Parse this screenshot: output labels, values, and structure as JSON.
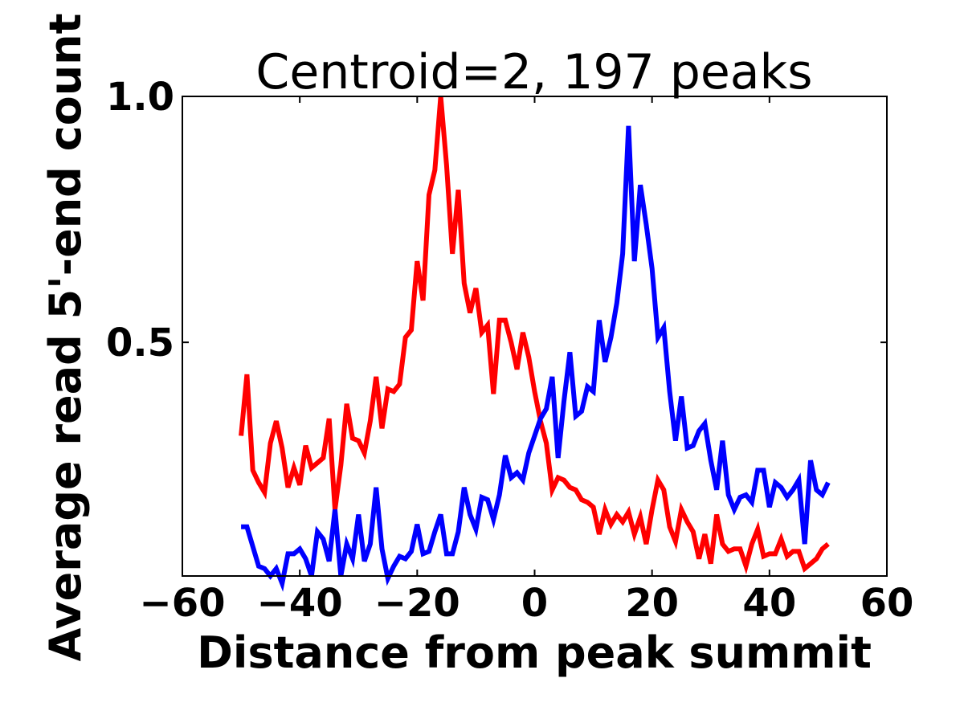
{
  "chart_data": {
    "type": "line",
    "title": "Centroid=2, 197 peaks",
    "xlabel": "Distance from peak summit",
    "ylabel": "Average read 5'-end count",
    "xlim": [
      -60,
      60
    ],
    "ylim": [
      0.025,
      1.0
    ],
    "xticks": [
      -60,
      -40,
      -20,
      0,
      20,
      40,
      60
    ],
    "xtick_labels": [
      "−60",
      "−40",
      "−20",
      "0",
      "20",
      "40",
      "60"
    ],
    "yticks": [
      0.5,
      1.0
    ],
    "ytick_labels": [
      "0.5",
      "1.0"
    ],
    "grid": false,
    "x": [
      -50,
      -49,
      -48,
      -47,
      -46,
      -45,
      -44,
      -43,
      -42,
      -41,
      -40,
      -39,
      -38,
      -37,
      -36,
      -35,
      -34,
      -33,
      -32,
      -31,
      -30,
      -29,
      -28,
      -27,
      -26,
      -25,
      -24,
      -23,
      -22,
      -21,
      -20,
      -19,
      -18,
      -17,
      -16,
      -15,
      -14,
      -13,
      -12,
      -11,
      -10,
      -9,
      -8,
      -7,
      -6,
      -5,
      -4,
      -3,
      -2,
      -1,
      0,
      1,
      2,
      3,
      4,
      5,
      6,
      7,
      8,
      9,
      10,
      11,
      12,
      13,
      14,
      15,
      16,
      17,
      18,
      19,
      20,
      21,
      22,
      23,
      24,
      25,
      26,
      27,
      28,
      29,
      30,
      31,
      32,
      33,
      34,
      35,
      36,
      37,
      38,
      39,
      40,
      41,
      42,
      43,
      44,
      45,
      46,
      47,
      48,
      49,
      50
    ],
    "series": [
      {
        "name": "red",
        "color": "#ff0000",
        "values": [
          0.31,
          0.435,
          0.24,
          0.215,
          0.195,
          0.295,
          0.34,
          0.285,
          0.205,
          0.245,
          0.21,
          0.29,
          0.245,
          0.255,
          0.265,
          0.345,
          0.16,
          0.25,
          0.375,
          0.305,
          0.3,
          0.275,
          0.34,
          0.43,
          0.325,
          0.405,
          0.4,
          0.415,
          0.51,
          0.525,
          0.665,
          0.585,
          0.8,
          0.85,
          1.0,
          0.86,
          0.68,
          0.81,
          0.62,
          0.56,
          0.61,
          0.52,
          0.535,
          0.395,
          0.545,
          0.545,
          0.5,
          0.445,
          0.52,
          0.47,
          0.4,
          0.34,
          0.295,
          0.2,
          0.225,
          0.22,
          0.205,
          0.2,
          0.18,
          0.175,
          0.165,
          0.11,
          0.16,
          0.13,
          0.15,
          0.135,
          0.155,
          0.11,
          0.145,
          0.09,
          0.16,
          0.22,
          0.2,
          0.125,
          0.095,
          0.16,
          0.135,
          0.115,
          0.06,
          0.11,
          0.05,
          0.15,
          0.09,
          0.075,
          0.08,
          0.08,
          0.045,
          0.09,
          0.12,
          0.065,
          0.07,
          0.07,
          0.1,
          0.065,
          0.075,
          0.075,
          0.04,
          0.05,
          0.06,
          0.08,
          0.09
        ]
      },
      {
        "name": "blue",
        "color": "#0000ff",
        "values": [
          0.125,
          0.125,
          0.085,
          0.045,
          0.04,
          0.025,
          0.04,
          0.01,
          0.07,
          0.07,
          0.08,
          0.06,
          0.025,
          0.115,
          0.1,
          0.055,
          0.16,
          0.025,
          0.09,
          0.06,
          0.15,
          0.055,
          0.09,
          0.205,
          0.08,
          0.02,
          0.045,
          0.065,
          0.06,
          0.075,
          0.13,
          0.07,
          0.075,
          0.115,
          0.15,
          0.07,
          0.07,
          0.115,
          0.205,
          0.15,
          0.12,
          0.185,
          0.18,
          0.14,
          0.19,
          0.27,
          0.225,
          0.235,
          0.22,
          0.275,
          0.31,
          0.345,
          0.365,
          0.43,
          0.265,
          0.38,
          0.48,
          0.35,
          0.36,
          0.41,
          0.4,
          0.545,
          0.46,
          0.51,
          0.58,
          0.68,
          0.94,
          0.665,
          0.82,
          0.74,
          0.65,
          0.51,
          0.53,
          0.4,
          0.3,
          0.39,
          0.285,
          0.29,
          0.32,
          0.335,
          0.26,
          0.2,
          0.3,
          0.19,
          0.16,
          0.185,
          0.19,
          0.175,
          0.24,
          0.24,
          0.165,
          0.215,
          0.205,
          0.185,
          0.2,
          0.22,
          0.09,
          0.26,
          0.2,
          0.19,
          0.215
        ]
      }
    ]
  }
}
